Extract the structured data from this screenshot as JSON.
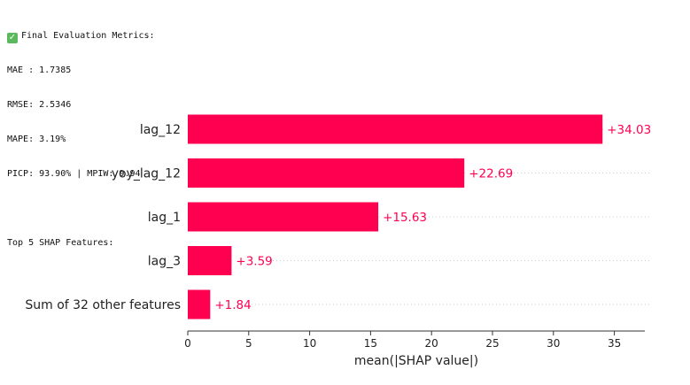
{
  "console": {
    "check_icon": "check-mark-icon",
    "header": "Final Evaluation Metrics:",
    "metrics": [
      "MAE : 1.7385",
      "RMSE: 2.5346",
      "MAPE: 3.19%",
      "PICP: 93.90% | MPIW: 9.94"
    ],
    "shap_header": "Top 5 SHAP Features:"
  },
  "chart_data": {
    "type": "bar",
    "orientation": "horizontal",
    "categories": [
      "lag_12",
      "yoy_lag_12",
      "lag_1",
      "lag_3",
      "Sum of 32 other features"
    ],
    "values": [
      34.03,
      22.69,
      15.63,
      3.59,
      1.84
    ],
    "value_labels": [
      "+34.03",
      "+22.69",
      "+15.63",
      "+3.59",
      "+1.84"
    ],
    "xlabel": "mean(|SHAP value|)",
    "xlim": [
      0,
      37.5
    ],
    "xticks": [
      0,
      5,
      10,
      15,
      20,
      25,
      30,
      35
    ],
    "bar_color": "#ff0051",
    "grid": "dotted horizontal guide lines per bar"
  }
}
